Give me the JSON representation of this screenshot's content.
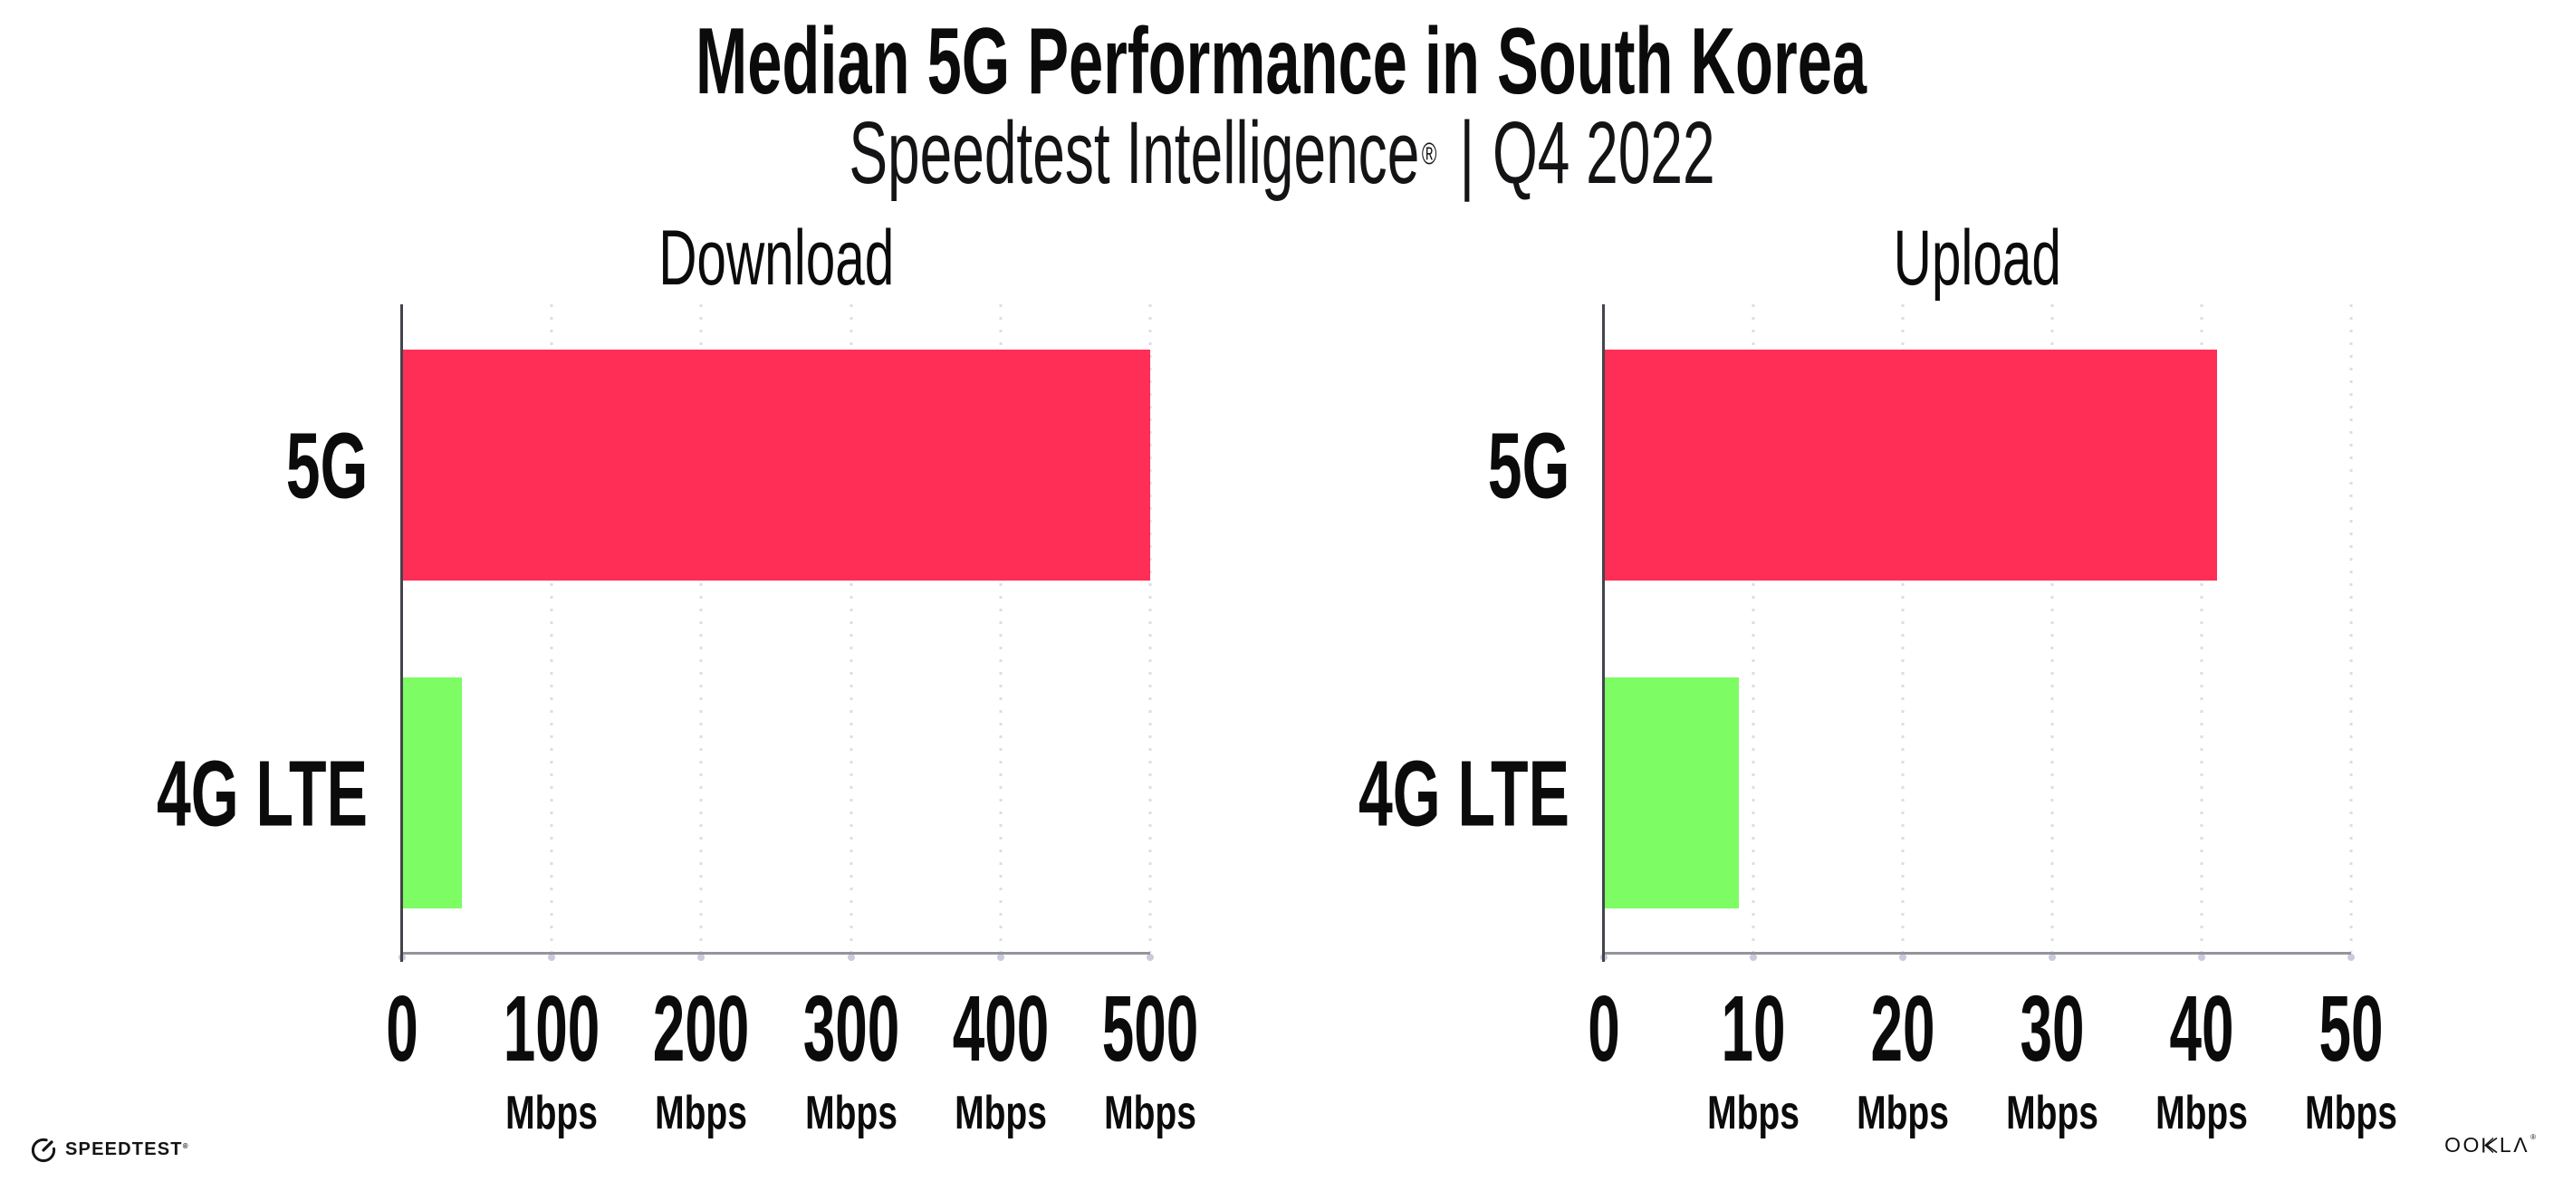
{
  "header": {
    "title": "Median 5G Performance in South Korea",
    "subtitle": {
      "brand": "Speedtest Intelligence",
      "reg": "®",
      "separator": "|",
      "period": "Q4 2022"
    }
  },
  "chart_data": [
    {
      "type": "bar",
      "orientation": "horizontal",
      "title": "Download",
      "categories": [
        "5G",
        "4G LTE"
      ],
      "values": [
        500,
        40
      ],
      "unit": "Mbps",
      "xlim": [
        0,
        500
      ],
      "xticks": [
        0,
        100,
        200,
        300,
        400,
        500
      ],
      "series_colors": [
        "#FF2E56",
        "#7DFC64"
      ],
      "grid": "dotted-vertical",
      "legend": "none"
    },
    {
      "type": "bar",
      "orientation": "horizontal",
      "title": "Upload",
      "categories": [
        "5G",
        "4G LTE"
      ],
      "values": [
        41,
        9
      ],
      "unit": "Mbps",
      "xlim": [
        0,
        50
      ],
      "xticks": [
        0,
        10,
        20,
        30,
        40,
        50
      ],
      "series_colors": [
        "#FF2E56",
        "#7DFC64"
      ],
      "grid": "dotted-vertical",
      "legend": "none"
    }
  ],
  "footer": {
    "speedtest": {
      "label": "SPEEDTEST",
      "reg": "®"
    },
    "ookla": {
      "oo": "OO",
      "l": "L",
      "a": "Λ",
      "reg": "®"
    }
  },
  "colors": {
    "bar_5g": "#FF2E56",
    "bar_4g_lte": "#7DFC64",
    "gridline": "#DCDDE6",
    "baseline": "#94949C",
    "y_axis": "#44444C",
    "text": "#0B0B0C",
    "background": "#FFFFFF"
  }
}
